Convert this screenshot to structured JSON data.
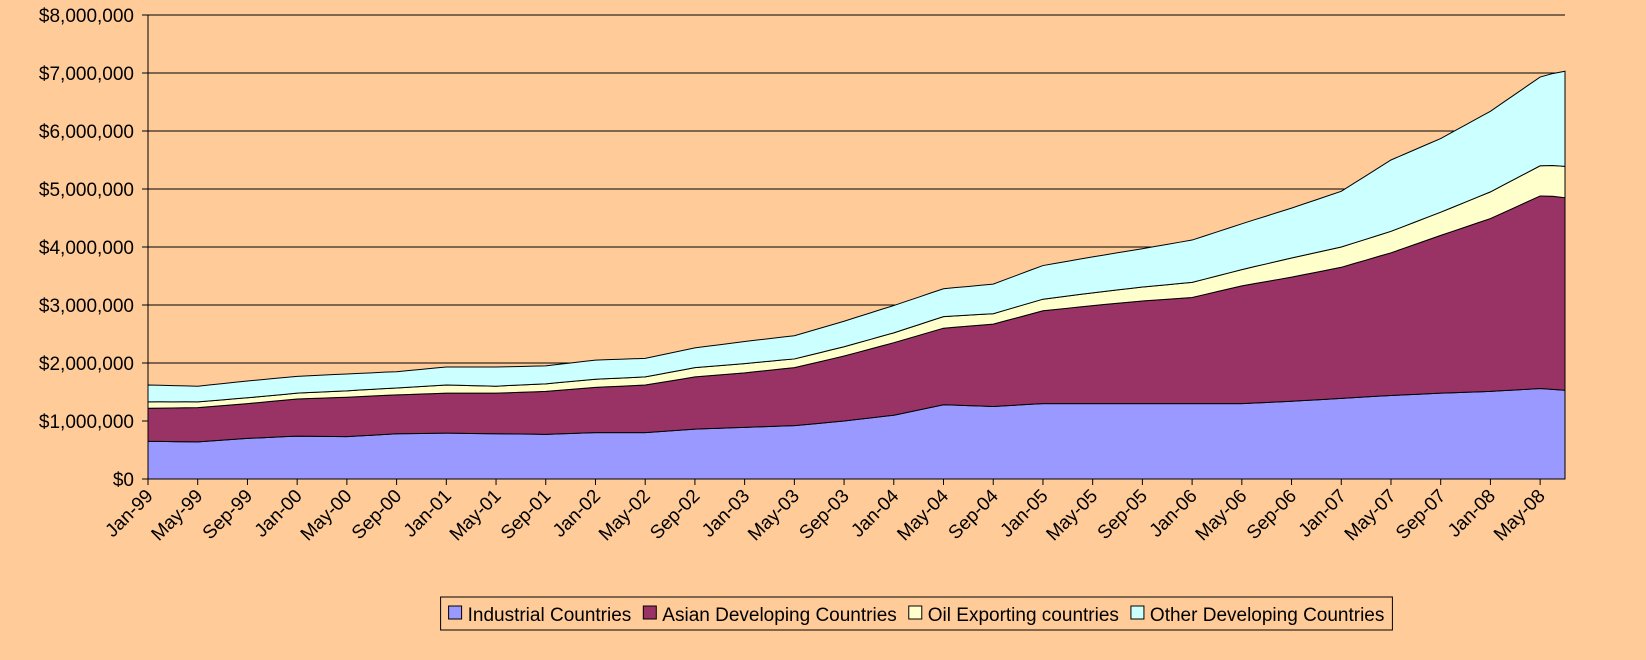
{
  "chart_data": {
    "type": "stacked-area",
    "categories": [
      "Jan-99",
      null,
      null,
      null,
      "May-99",
      null,
      null,
      null,
      "Sep-99",
      null,
      null,
      null,
      "Jan-00",
      null,
      null,
      null,
      "May-00",
      null,
      null,
      null,
      "Sep-00",
      null,
      null,
      null,
      "Jan-01",
      null,
      null,
      null,
      "May-01",
      null,
      null,
      null,
      "Sep-01",
      null,
      null,
      null,
      "Jan-02",
      null,
      null,
      null,
      "May-02",
      null,
      null,
      null,
      "Sep-02",
      null,
      null,
      null,
      "Jan-03",
      null,
      null,
      null,
      "May-03",
      null,
      null,
      null,
      "Sep-03",
      null,
      null,
      null,
      "Jan-04",
      null,
      null,
      null,
      "May-04",
      null,
      null,
      null,
      "Sep-04",
      null,
      null,
      null,
      "Jan-05",
      null,
      null,
      null,
      "May-05",
      null,
      null,
      null,
      "Sep-05",
      null,
      null,
      null,
      "Jan-06",
      null,
      null,
      null,
      "May-06",
      null,
      null,
      null,
      "Sep-06",
      null,
      null,
      null,
      "Jan-07",
      null,
      null,
      null,
      "May-07",
      null,
      null,
      null,
      "Sep-07",
      null,
      null,
      null,
      "Jan-08",
      null,
      null,
      null,
      "May-08",
      null,
      null
    ],
    "series": [
      {
        "name": "Industrial Countries",
        "color": "#9999ff",
        "values": [
          650000,
          648000,
          645000,
          643000,
          640000,
          655000,
          670000,
          685000,
          700000,
          710000,
          720000,
          730000,
          740000,
          738000,
          735000,
          733000,
          730000,
          743000,
          755000,
          768000,
          780000,
          783000,
          785000,
          788000,
          790000,
          788000,
          785000,
          783000,
          780000,
          778000,
          775000,
          773000,
          770000,
          778000,
          785000,
          793000,
          800000,
          800000,
          800000,
          800000,
          800000,
          815000,
          830000,
          845000,
          860000,
          868000,
          875000,
          883000,
          890000,
          898000,
          905000,
          913000,
          920000,
          940000,
          960000,
          980000,
          1000000,
          1025000,
          1050000,
          1075000,
          1100000,
          1145000,
          1190000,
          1235000,
          1280000,
          1273000,
          1265000,
          1258000,
          1250000,
          1263000,
          1275000,
          1288000,
          1300000,
          1300000,
          1300000,
          1300000,
          1300000,
          1300000,
          1300000,
          1300000,
          1300000,
          1300000,
          1300000,
          1300000,
          1300000,
          1300000,
          1300000,
          1300000,
          1300000,
          1310000,
          1320000,
          1330000,
          1340000,
          1353000,
          1365000,
          1378000,
          1390000,
          1403000,
          1415000,
          1428000,
          1440000,
          1450000,
          1460000,
          1470000,
          1480000,
          1488000,
          1495000,
          1503000,
          1510000,
          1523000,
          1535000,
          1548000,
          1560000,
          1545000,
          1530000
        ]
      },
      {
        "name": "Asian Developing Countries",
        "color": "#993366",
        "values": [
          570000,
          575000,
          580000,
          585000,
          590000,
          593000,
          595000,
          598000,
          600000,
          610000,
          620000,
          630000,
          640000,
          650000,
          660000,
          670000,
          680000,
          678000,
          675000,
          673000,
          670000,
          675000,
          680000,
          685000,
          690000,
          693000,
          695000,
          698000,
          700000,
          710000,
          720000,
          730000,
          740000,
          750000,
          760000,
          770000,
          780000,
          790000,
          800000,
          810000,
          820000,
          840000,
          860000,
          880000,
          900000,
          910000,
          920000,
          930000,
          940000,
          955000,
          970000,
          985000,
          1000000,
          1030000,
          1060000,
          1090000,
          1120000,
          1153000,
          1185000,
          1218000,
          1250000,
          1268000,
          1285000,
          1303000,
          1320000,
          1345000,
          1370000,
          1395000,
          1420000,
          1465000,
          1510000,
          1555000,
          1600000,
          1623000,
          1645000,
          1668000,
          1690000,
          1710000,
          1730000,
          1750000,
          1770000,
          1785000,
          1800000,
          1815000,
          1830000,
          1880000,
          1930000,
          1980000,
          2030000,
          2058000,
          2085000,
          2113000,
          2140000,
          2170000,
          2200000,
          2230000,
          2260000,
          2310000,
          2360000,
          2410000,
          2460000,
          2525000,
          2590000,
          2655000,
          2720000,
          2785000,
          2850000,
          2915000,
          2980000,
          3065000,
          3150000,
          3235000,
          3320000,
          3330000,
          3320000
        ]
      },
      {
        "name": "Oil Exporting countries",
        "color": "#ffffcc",
        "values": [
          110000,
          108000,
          105000,
          103000,
          100000,
          100000,
          100000,
          100000,
          100000,
          100000,
          100000,
          100000,
          100000,
          103000,
          105000,
          108000,
          110000,
          113000,
          115000,
          118000,
          120000,
          125000,
          130000,
          135000,
          140000,
          135000,
          130000,
          125000,
          120000,
          123000,
          125000,
          128000,
          130000,
          133000,
          135000,
          138000,
          140000,
          140000,
          140000,
          140000,
          140000,
          145000,
          150000,
          155000,
          160000,
          160000,
          160000,
          160000,
          160000,
          158000,
          155000,
          153000,
          150000,
          153000,
          155000,
          158000,
          160000,
          163000,
          165000,
          168000,
          170000,
          178000,
          185000,
          193000,
          200000,
          195000,
          190000,
          185000,
          180000,
          185000,
          190000,
          195000,
          200000,
          205000,
          210000,
          215000,
          220000,
          225000,
          230000,
          235000,
          240000,
          245000,
          250000,
          255000,
          260000,
          265000,
          270000,
          275000,
          280000,
          293000,
          305000,
          318000,
          330000,
          335000,
          340000,
          345000,
          350000,
          355000,
          360000,
          365000,
          370000,
          378000,
          385000,
          393000,
          400000,
          415000,
          430000,
          445000,
          460000,
          475000,
          490000,
          505000,
          520000,
          530000,
          540000
        ]
      },
      {
        "name": "Other Developing Countries",
        "color": "#ccffff",
        "values": [
          290000,
          285000,
          280000,
          275000,
          270000,
          275000,
          280000,
          285000,
          290000,
          290000,
          290000,
          290000,
          290000,
          290000,
          290000,
          290000,
          290000,
          288000,
          285000,
          283000,
          280000,
          288000,
          295000,
          303000,
          310000,
          315000,
          320000,
          325000,
          330000,
          325000,
          320000,
          315000,
          310000,
          315000,
          320000,
          325000,
          330000,
          328000,
          325000,
          323000,
          320000,
          325000,
          330000,
          335000,
          340000,
          350000,
          360000,
          370000,
          380000,
          385000,
          390000,
          395000,
          400000,
          410000,
          420000,
          430000,
          440000,
          448000,
          455000,
          463000,
          470000,
          473000,
          475000,
          478000,
          480000,
          488000,
          495000,
          503000,
          510000,
          528000,
          545000,
          563000,
          580000,
          590000,
          600000,
          610000,
          620000,
          630000,
          640000,
          650000,
          660000,
          678000,
          695000,
          713000,
          730000,
          745000,
          760000,
          775000,
          790000,
          808000,
          825000,
          843000,
          860000,
          885000,
          910000,
          935000,
          960000,
          1028000,
          1095000,
          1163000,
          1230000,
          1240000,
          1250000,
          1260000,
          1270000,
          1300000,
          1330000,
          1360000,
          1390000,
          1425000,
          1460000,
          1495000,
          1530000,
          1585000,
          1640000
        ]
      }
    ],
    "ylim": [
      0,
      8000000
    ],
    "yticks": [
      {
        "value": 0,
        "label": "$0"
      },
      {
        "value": 1000000,
        "label": "$1,000,000"
      },
      {
        "value": 2000000,
        "label": "$2,000,000"
      },
      {
        "value": 3000000,
        "label": "$3,000,000"
      },
      {
        "value": 4000000,
        "label": "$4,000,000"
      },
      {
        "value": 5000000,
        "label": "$5,000,000"
      },
      {
        "value": 6000000,
        "label": "$6,000,000"
      },
      {
        "value": 7000000,
        "label": "$7,000,000"
      },
      {
        "value": 8000000,
        "label": "$8,000,000"
      }
    ],
    "grid": true,
    "legend": "bottom"
  }
}
